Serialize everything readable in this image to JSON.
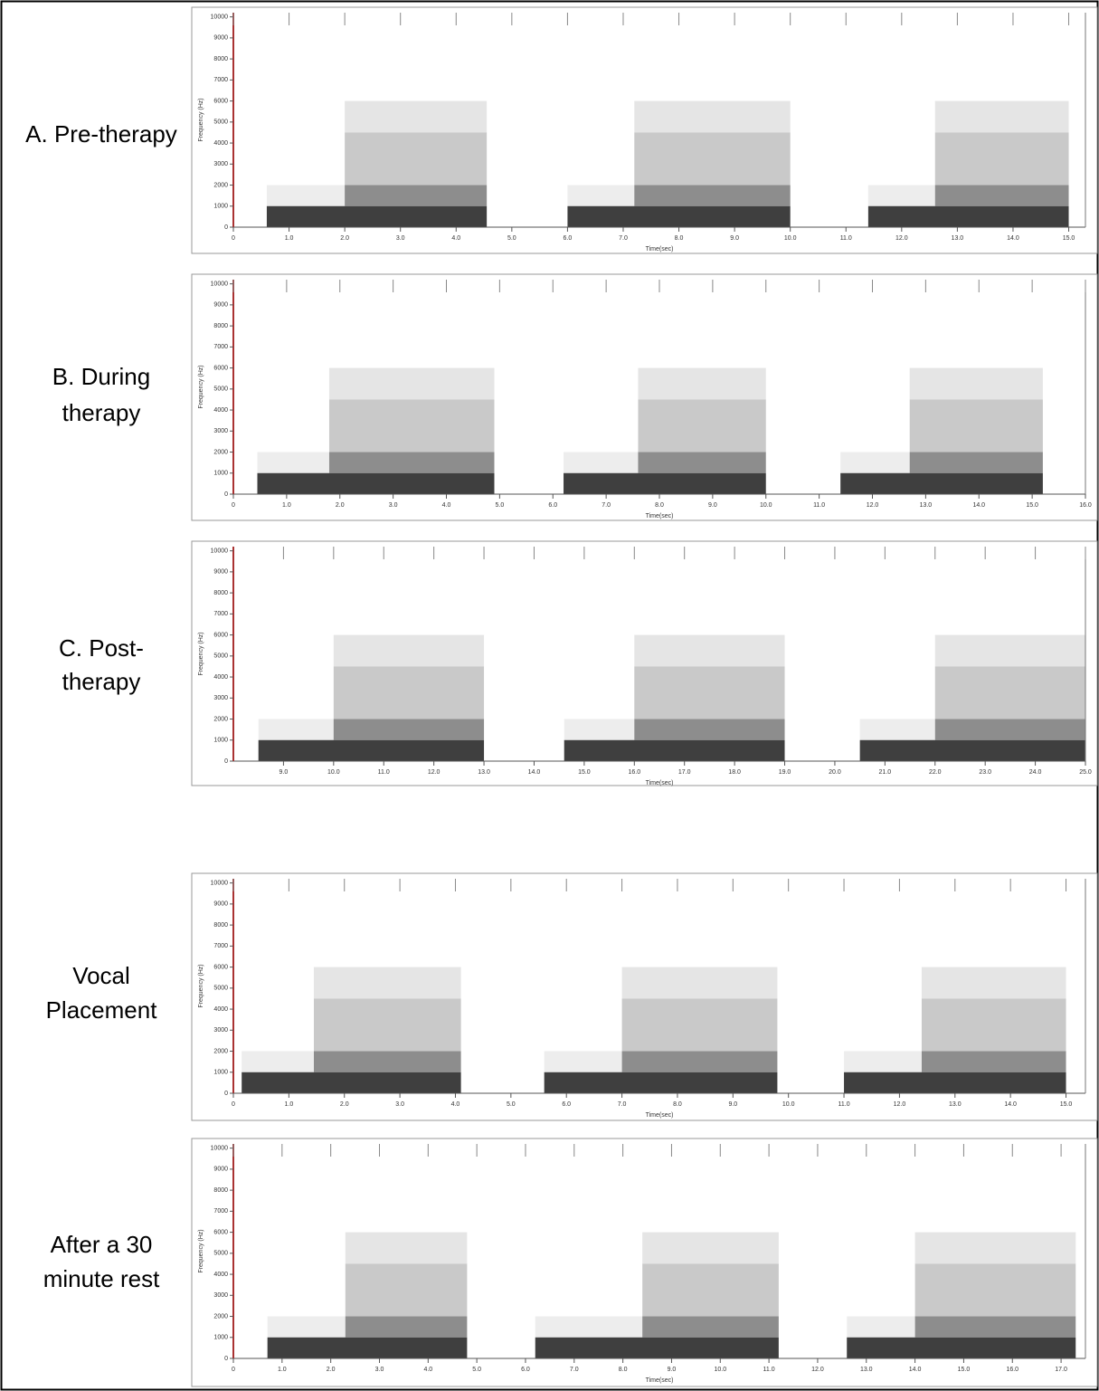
{
  "chart_data": [
    {
      "type": "spectrogram",
      "label": [
        "A. Pre-therapy"
      ],
      "ylabel": "Frequency (Hz)",
      "xlabel": "Time(sec)",
      "xlim": [
        0,
        15.3
      ],
      "ylim": [
        0,
        10200
      ],
      "xticks": [
        0,
        {
          "value": 1,
          "label": "1.0"
        },
        {
          "value": 2,
          "label": "2.0"
        },
        {
          "value": 3,
          "label": "3.0"
        },
        {
          "value": 4,
          "label": "4.0"
        },
        {
          "value": 5,
          "label": "5.0"
        },
        {
          "value": 6,
          "label": "6.0"
        },
        {
          "value": 7,
          "label": "7.0"
        },
        {
          "value": 8,
          "label": "8.0"
        },
        {
          "value": 9,
          "label": "9.0"
        },
        {
          "value": 10,
          "label": "10.0"
        },
        {
          "value": 11,
          "label": "11.0"
        },
        {
          "value": 12,
          "label": "12.0"
        },
        {
          "value": 13,
          "label": "13.0"
        },
        {
          "value": 14,
          "label": "14.0"
        },
        {
          "value": 15,
          "label": "15.0"
        }
      ],
      "yticks": [
        0,
        1000,
        2000,
        3000,
        4000,
        5000,
        6000,
        7000,
        8000,
        9000,
        10000
      ],
      "band_tops": [
        1000,
        2000,
        4500,
        6000
      ],
      "segments": [
        {
          "start": 0.6,
          "shift": 2.0,
          "end": 4.55
        },
        {
          "start": 6.0,
          "shift": 7.2,
          "end": 10.0
        },
        {
          "start": 11.4,
          "shift": 12.6,
          "end": 15.0
        }
      ]
    },
    {
      "type": "spectrogram",
      "label": [
        "B. During",
        "therapy"
      ],
      "ylabel": "Frequency (Hz)",
      "xlabel": "Time(sec)",
      "xlim": [
        0,
        16.0
      ],
      "ylim": [
        0,
        10200
      ],
      "xticks": [
        0,
        {
          "value": 1,
          "label": "1.0"
        },
        {
          "value": 2,
          "label": "2.0"
        },
        {
          "value": 3,
          "label": "3.0"
        },
        {
          "value": 4,
          "label": "4.0"
        },
        {
          "value": 5,
          "label": "5.0"
        },
        {
          "value": 6,
          "label": "6.0"
        },
        {
          "value": 7,
          "label": "7.0"
        },
        {
          "value": 8,
          "label": "8.0"
        },
        {
          "value": 9,
          "label": "9.0"
        },
        {
          "value": 10,
          "label": "10.0"
        },
        {
          "value": 11,
          "label": "11.0"
        },
        {
          "value": 12,
          "label": "12.0"
        },
        {
          "value": 13,
          "label": "13.0"
        },
        {
          "value": 14,
          "label": "14.0"
        },
        {
          "value": 15,
          "label": "15.0"
        },
        {
          "value": 16,
          "label": "16.0"
        }
      ],
      "yticks": [
        0,
        1000,
        2000,
        3000,
        4000,
        5000,
        6000,
        7000,
        8000,
        9000,
        10000
      ],
      "band_tops": [
        1000,
        2000,
        4500,
        6000
      ],
      "segments": [
        {
          "start": 0.45,
          "shift": 1.8,
          "end": 4.9
        },
        {
          "start": 6.2,
          "shift": 7.6,
          "end": 10.0
        },
        {
          "start": 11.4,
          "shift": 12.7,
          "end": 15.2
        }
      ]
    },
    {
      "type": "spectrogram",
      "label": [
        "C. Post-",
        "therapy"
      ],
      "ylabel": "Frequency (Hz)",
      "xlabel": "Time(sec)",
      "xlim": [
        8.0,
        25.0
      ],
      "ylim": [
        0,
        10200
      ],
      "xticks": [
        {
          "value": 9,
          "label": "9.0"
        },
        {
          "value": 10,
          "label": "10.0"
        },
        {
          "value": 11,
          "label": "11.0"
        },
        {
          "value": 12,
          "label": "12.0"
        },
        {
          "value": 13,
          "label": "13.0"
        },
        {
          "value": 14,
          "label": "14.0"
        },
        {
          "value": 15,
          "label": "15.0"
        },
        {
          "value": 16,
          "label": "16.0"
        },
        {
          "value": 17,
          "label": "17.0"
        },
        {
          "value": 18,
          "label": "18.0"
        },
        {
          "value": 19,
          "label": "19.0"
        },
        {
          "value": 20,
          "label": "20.0"
        },
        {
          "value": 21,
          "label": "21.0"
        },
        {
          "value": 22,
          "label": "22.0"
        },
        {
          "value": 23,
          "label": "23.0"
        },
        {
          "value": 24,
          "label": "24.0"
        },
        {
          "value": 25,
          "label": "25.0"
        }
      ],
      "yticks": [
        0,
        1000,
        2000,
        3000,
        4000,
        5000,
        6000,
        7000,
        8000,
        9000,
        10000
      ],
      "band_tops": [
        1000,
        2000,
        4500,
        6000
      ],
      "segments": [
        {
          "start": 8.5,
          "shift": 10.0,
          "end": 13.0
        },
        {
          "start": 14.6,
          "shift": 16.0,
          "end": 19.0
        },
        {
          "start": 20.5,
          "shift": 22.0,
          "end": 25.0
        }
      ]
    },
    {
      "type": "spectrogram",
      "label": [
        "Vocal",
        "Placement"
      ],
      "ylabel": "Frequency (Hz)",
      "xlabel": "Time(sec)",
      "xlim": [
        0,
        15.35
      ],
      "ylim": [
        0,
        10200
      ],
      "xticks": [
        0,
        {
          "value": 1,
          "label": "1.0"
        },
        {
          "value": 2,
          "label": "2.0"
        },
        {
          "value": 3,
          "label": "3.0"
        },
        {
          "value": 4,
          "label": "4.0"
        },
        {
          "value": 5,
          "label": "5.0"
        },
        {
          "value": 6,
          "label": "6.0"
        },
        {
          "value": 7,
          "label": "7.0"
        },
        {
          "value": 8,
          "label": "8.0"
        },
        {
          "value": 9,
          "label": "9.0"
        },
        {
          "value": 10,
          "label": "10.0"
        },
        {
          "value": 11,
          "label": "11.0"
        },
        {
          "value": 12,
          "label": "12.0"
        },
        {
          "value": 13,
          "label": "13.0"
        },
        {
          "value": 14,
          "label": "14.0"
        },
        {
          "value": 15,
          "label": "15.0"
        }
      ],
      "yticks": [
        0,
        1000,
        2000,
        3000,
        4000,
        5000,
        6000,
        7000,
        8000,
        9000,
        10000
      ],
      "band_tops": [
        1000,
        2000,
        4500,
        6000
      ],
      "segments": [
        {
          "start": 0.15,
          "shift": 1.45,
          "end": 4.1
        },
        {
          "start": 5.6,
          "shift": 7.0,
          "end": 9.8
        },
        {
          "start": 11.0,
          "shift": 12.4,
          "end": 15.0
        }
      ]
    },
    {
      "type": "spectrogram",
      "label": [
        "After a 30",
        "minute rest"
      ],
      "ylabel": "Frequency (Hz)",
      "xlabel": "Time(sec)",
      "xlim": [
        0,
        17.5
      ],
      "ylim": [
        0,
        10200
      ],
      "xticks": [
        0,
        {
          "value": 1,
          "label": "1.0"
        },
        {
          "value": 2,
          "label": "2.0"
        },
        {
          "value": 3,
          "label": "3.0"
        },
        {
          "value": 4,
          "label": "4.0"
        },
        {
          "value": 5,
          "label": "5.0"
        },
        {
          "value": 6,
          "label": "6.0"
        },
        {
          "value": 7,
          "label": "7.0"
        },
        {
          "value": 8,
          "label": "8.0"
        },
        {
          "value": 9,
          "label": "9.0"
        },
        {
          "value": 10,
          "label": "10.0"
        },
        {
          "value": 11,
          "label": "11.0"
        },
        {
          "value": 12,
          "label": "12.0"
        },
        {
          "value": 13,
          "label": "13.0"
        },
        {
          "value": 14,
          "label": "14.0"
        },
        {
          "value": 15,
          "label": "15.0"
        },
        {
          "value": 16,
          "label": "16.0"
        },
        {
          "value": 17,
          "label": "17.0"
        }
      ],
      "yticks": [
        0,
        1000,
        2000,
        3000,
        4000,
        5000,
        6000,
        7000,
        8000,
        9000,
        10000
      ],
      "band_tops": [
        1000,
        2000,
        4500,
        6000
      ],
      "segments": [
        {
          "start": 0.7,
          "shift": 2.3,
          "end": 4.8
        },
        {
          "start": 6.2,
          "shift": 8.4,
          "end": 11.2
        },
        {
          "start": 12.6,
          "shift": 14.0,
          "end": 17.3
        }
      ]
    }
  ]
}
